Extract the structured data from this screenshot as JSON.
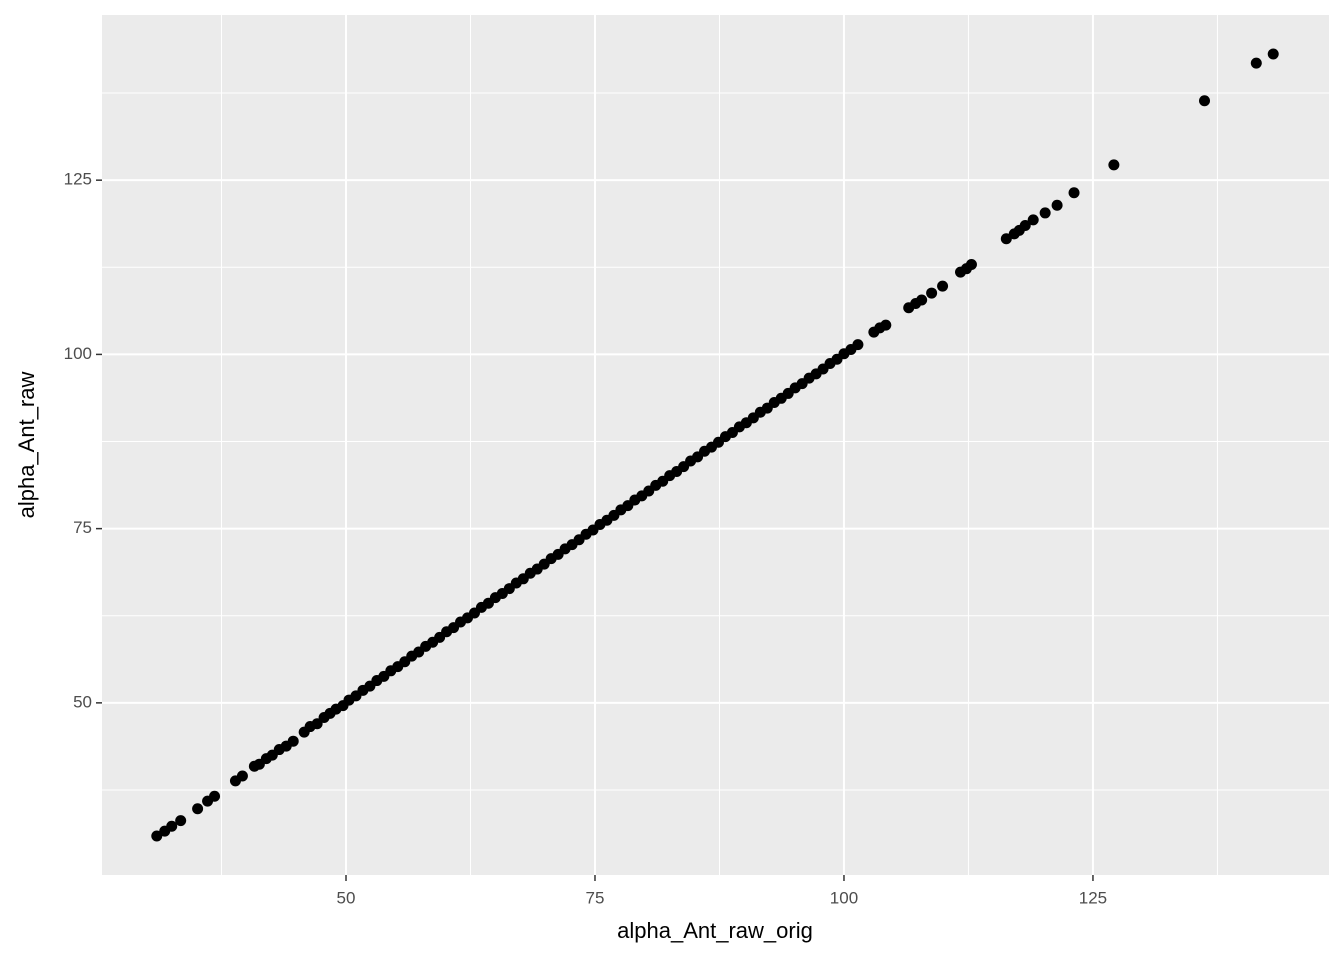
{
  "chart_data": {
    "type": "scatter",
    "x_label": "alpha_Ant_raw_orig",
    "y_label": "alpha_Ant_raw",
    "color": "#000000",
    "xlim": [
      25.5,
      148.7
    ],
    "ylim": [
      25.3,
      148.7
    ],
    "xticks": [
      50,
      75,
      100,
      125
    ],
    "yticks": [
      50,
      75,
      100,
      125
    ],
    "minor_xticks": [
      37.5,
      62.5,
      87.5,
      112.5,
      137.5
    ],
    "minor_yticks": [
      37.5,
      62.5,
      87.5,
      112.5,
      137.5
    ],
    "grid": true,
    "x": [
      31.0,
      31.8,
      32.5,
      33.4,
      35.1,
      36.1,
      36.8,
      38.9,
      39.6,
      40.8,
      41.3,
      42.0,
      42.6,
      43.3,
      44.0,
      44.7,
      45.8,
      46.4,
      47.1,
      47.8,
      48.4,
      49.0,
      49.7,
      50.3,
      51.0,
      51.7,
      52.4,
      53.1,
      53.8,
      54.5,
      55.2,
      55.9,
      56.6,
      57.3,
      58.0,
      58.7,
      59.4,
      60.1,
      60.8,
      61.5,
      62.2,
      62.9,
      63.6,
      64.3,
      65.0,
      65.7,
      66.4,
      67.1,
      67.8,
      68.5,
      69.2,
      69.9,
      70.6,
      71.3,
      72.0,
      72.7,
      73.4,
      74.1,
      74.8,
      75.5,
      76.2,
      76.9,
      77.6,
      78.3,
      79.0,
      79.7,
      80.4,
      81.1,
      81.8,
      82.5,
      83.2,
      83.9,
      84.6,
      85.3,
      86.0,
      86.7,
      87.4,
      88.1,
      88.8,
      89.5,
      90.2,
      90.9,
      91.6,
      92.3,
      93.0,
      93.7,
      94.4,
      95.1,
      95.8,
      96.5,
      97.2,
      97.9,
      98.6,
      99.3,
      100.0,
      100.7,
      101.4,
      103.0,
      103.6,
      104.2,
      106.5,
      107.2,
      107.8,
      108.8,
      109.9,
      111.7,
      112.3,
      112.8,
      116.3,
      117.1,
      117.6,
      118.2,
      119.0,
      120.2,
      121.4,
      123.1,
      127.1,
      136.2,
      141.4,
      143.1
    ],
    "y": [
      30.9,
      31.6,
      32.3,
      33.1,
      34.8,
      35.9,
      36.6,
      38.8,
      39.5,
      40.9,
      41.2,
      42.0,
      42.5,
      43.3,
      43.8,
      44.5,
      45.8,
      46.6,
      47.0,
      47.9,
      48.5,
      49.1,
      49.6,
      50.4,
      51.0,
      51.8,
      52.4,
      53.2,
      53.8,
      54.6,
      55.2,
      55.9,
      56.7,
      57.3,
      58.1,
      58.7,
      59.4,
      60.2,
      60.8,
      61.6,
      62.2,
      62.9,
      63.7,
      64.3,
      65.1,
      65.7,
      66.4,
      67.2,
      67.8,
      68.6,
      69.2,
      69.9,
      70.7,
      71.3,
      72.1,
      72.7,
      73.4,
      74.2,
      74.8,
      75.6,
      76.2,
      76.9,
      77.7,
      78.3,
      79.1,
      79.7,
      80.4,
      81.2,
      81.8,
      82.6,
      83.2,
      83.9,
      84.7,
      85.3,
      86.1,
      86.7,
      87.4,
      88.2,
      88.8,
      89.6,
      90.2,
      90.9,
      91.7,
      92.3,
      93.1,
      93.7,
      94.4,
      95.2,
      95.8,
      96.6,
      97.2,
      97.9,
      98.7,
      99.3,
      100.1,
      100.7,
      101.4,
      103.2,
      103.8,
      104.2,
      106.7,
      107.3,
      107.8,
      108.8,
      109.8,
      111.8,
      112.3,
      112.9,
      116.6,
      117.3,
      117.8,
      118.5,
      119.3,
      120.3,
      121.4,
      123.2,
      127.2,
      136.4,
      141.8,
      143.1
    ]
  }
}
